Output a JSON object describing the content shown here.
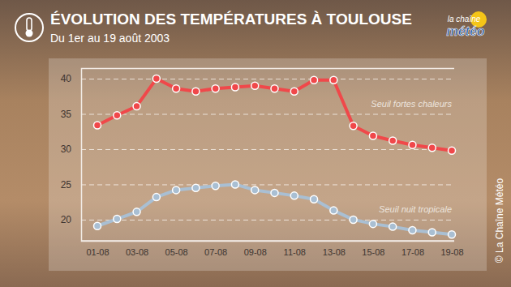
{
  "chart_data": {
    "type": "line",
    "title": "ÉVOLUTION DES TEMPÉRATURES À TOULOUSE",
    "subtitle": "Du 1er au 19 août 2003",
    "logo": [
      "la chaîne",
      "météo"
    ],
    "credit": "© La Chaîne Météo",
    "categories": [
      "01-08",
      null,
      "03-08",
      null,
      "05-08",
      null,
      "07-08",
      null,
      "09-08",
      null,
      "11-08",
      null,
      "13-08",
      null,
      "15-08",
      null,
      "17-08",
      null,
      "19-08"
    ],
    "series": [
      {
        "color": "#f0484a",
        "marker": "circle",
        "values": [
          33.4,
          34.8,
          36.1,
          40.0,
          38.6,
          38.2,
          38.6,
          38.8,
          39.0,
          38.6,
          38.2,
          39.8,
          39.8,
          33.3,
          31.9,
          31.2,
          30.6,
          30.2,
          29.8
        ]
      },
      {
        "color": "#a9bfd3",
        "marker": "circle",
        "values": [
          19.1,
          20.1,
          21.1,
          23.2,
          24.2,
          24.5,
          24.8,
          25.0,
          24.2,
          23.8,
          23.4,
          22.9,
          21.3,
          20.0,
          19.4,
          19.0,
          18.5,
          18.2,
          17.9
        ]
      }
    ],
    "ylim": [
      17,
      41.5
    ],
    "yticks": [
      20,
      25,
      30,
      35,
      40
    ],
    "grid": true,
    "annotations": [
      {
        "text": "Seuil fortes chaleurs",
        "y": 35
      },
      {
        "text": "Seuil nuit tropicale",
        "y": 20
      }
    ]
  }
}
